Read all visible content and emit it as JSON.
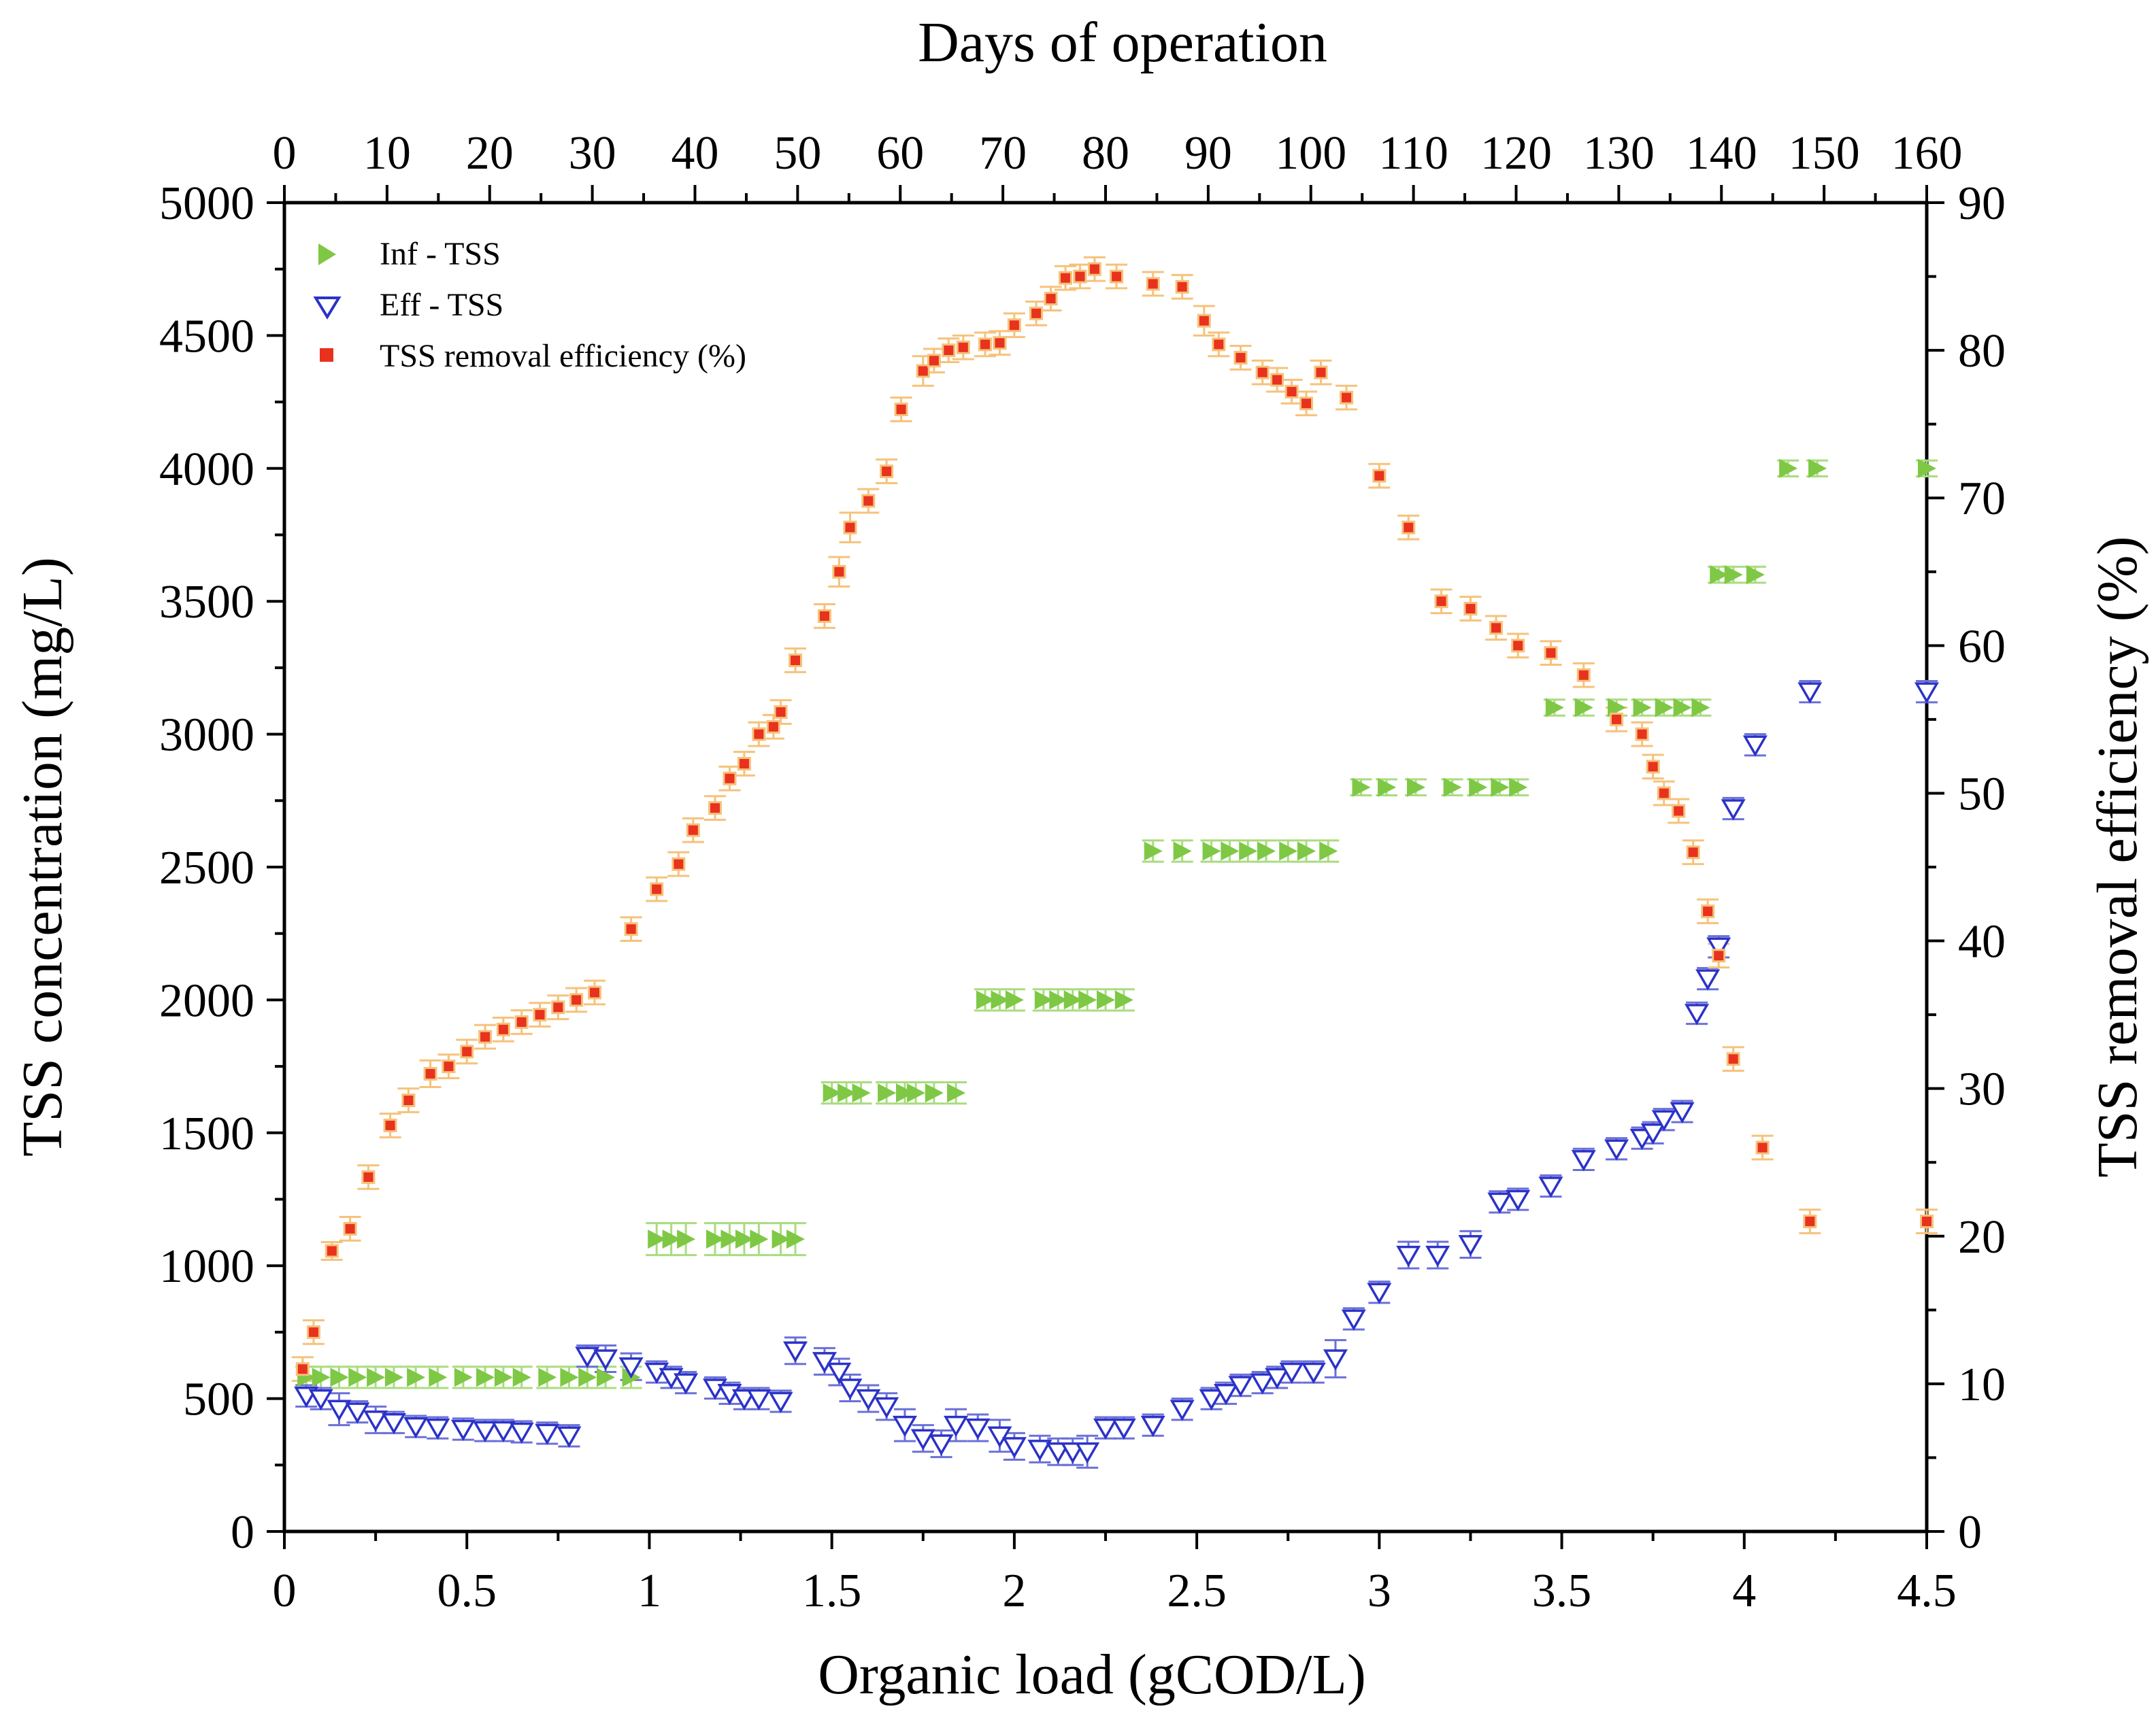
{
  "chart_data": {
    "type": "scatter",
    "x_bottom": {
      "label": "Organic load (gCOD/L)",
      "range": [
        0,
        4.5
      ],
      "ticks": [
        0,
        0.5,
        1,
        1.5,
        2,
        2.5,
        3,
        3.5,
        4,
        4.5
      ],
      "tick_labels": [
        "0",
        "0.5",
        "1",
        "1.5",
        "2",
        "2.5",
        "3",
        "3.5",
        "4",
        "4.5"
      ]
    },
    "x_top": {
      "label": "Days of operation",
      "range": [
        0,
        160
      ],
      "ticks": [
        0,
        10,
        20,
        30,
        40,
        50,
        60,
        70,
        80,
        90,
        100,
        110,
        120,
        130,
        140,
        150,
        160
      ],
      "tick_labels": [
        "0",
        "10",
        "20",
        "30",
        "40",
        "50",
        "60",
        "70",
        "80",
        "90",
        "100",
        "110",
        "120",
        "130",
        "140",
        "150",
        "160"
      ]
    },
    "y_left": {
      "label": "TSS concentration (mg/L)",
      "range": [
        0,
        5000
      ],
      "ticks": [
        0,
        500,
        1000,
        1500,
        2000,
        2500,
        3000,
        3500,
        4000,
        4500,
        5000
      ],
      "tick_labels": [
        "0",
        "500",
        "1000",
        "1500",
        "2000",
        "2500",
        "3000",
        "3500",
        "4000",
        "4500",
        "5000"
      ]
    },
    "y_right": {
      "label": "TSS removal efficiency (%)",
      "range": [
        0,
        90
      ],
      "ticks": [
        0,
        10,
        20,
        30,
        40,
        50,
        60,
        70,
        80,
        90
      ],
      "tick_labels": [
        "0",
        "10",
        "20",
        "30",
        "40",
        "50",
        "60",
        "70",
        "80",
        "90"
      ]
    },
    "legend_position": "top-left",
    "colors": {
      "inf": "#7ec845",
      "eff": "#2b32c8",
      "eff_err": "#6b70d8",
      "eff_inner": "#ffffff",
      "removal": "#e8321e",
      "removal_err": "#f6c27a",
      "inf_err": "#a9dc7e",
      "axis": "#000000"
    },
    "series": [
      {
        "name": "Inf - TSS",
        "marker": "triangle-right",
        "axis": "left",
        "x": [
          0.06,
          0.1,
          0.15,
          0.2,
          0.25,
          0.3,
          0.36,
          0.42,
          0.49,
          0.55,
          0.6,
          0.65,
          0.72,
          0.78,
          0.83,
          0.88,
          0.95,
          1.02,
          1.06,
          1.1,
          1.18,
          1.22,
          1.26,
          1.3,
          1.36,
          1.4,
          1.5,
          1.54,
          1.58,
          1.65,
          1.7,
          1.73,
          1.78,
          1.84,
          1.92,
          1.96,
          2.0,
          2.08,
          2.12,
          2.16,
          2.2,
          2.25,
          2.3,
          2.38,
          2.46,
          2.54,
          2.59,
          2.64,
          2.69,
          2.75,
          2.8,
          2.86,
          2.95,
          3.02,
          3.1,
          3.2,
          3.27,
          3.33,
          3.38,
          3.48,
          3.56,
          3.65,
          3.72,
          3.78,
          3.83,
          3.88,
          3.93,
          3.97,
          4.03,
          4.12,
          4.2,
          4.5
        ],
        "y": [
          580,
          580,
          580,
          580,
          580,
          580,
          580,
          580,
          580,
          580,
          580,
          580,
          580,
          580,
          580,
          580,
          580,
          1100,
          1100,
          1100,
          1100,
          1100,
          1100,
          1100,
          1100,
          1100,
          1650,
          1650,
          1650,
          1650,
          1650,
          1650,
          1650,
          1650,
          2000,
          2000,
          2000,
          2000,
          2000,
          2000,
          2000,
          2000,
          2000,
          2560,
          2560,
          2560,
          2560,
          2560,
          2560,
          2560,
          2560,
          2560,
          2800,
          2800,
          2800,
          2800,
          2800,
          2800,
          2800,
          3100,
          3100,
          3100,
          3100,
          3100,
          3100,
          3100,
          3600,
          3600,
          3600,
          4000,
          4000,
          4000
        ],
        "err": [
          40,
          40,
          40,
          40,
          40,
          40,
          40,
          40,
          40,
          40,
          40,
          40,
          40,
          40,
          40,
          40,
          40,
          60,
          60,
          60,
          60,
          60,
          60,
          60,
          60,
          60,
          40,
          40,
          40,
          40,
          40,
          40,
          40,
          40,
          40,
          40,
          40,
          40,
          40,
          40,
          40,
          40,
          40,
          40,
          40,
          40,
          40,
          40,
          40,
          40,
          40,
          40,
          30,
          30,
          30,
          30,
          30,
          30,
          30,
          30,
          30,
          30,
          30,
          30,
          30,
          30,
          30,
          30,
          30,
          30,
          30,
          30
        ]
      },
      {
        "name": "Eff - TSS",
        "marker": "triangle-down-open",
        "axis": "left",
        "x": [
          0.06,
          0.1,
          0.15,
          0.2,
          0.25,
          0.3,
          0.36,
          0.42,
          0.49,
          0.55,
          0.6,
          0.65,
          0.72,
          0.78,
          0.83,
          0.88,
          0.95,
          1.02,
          1.06,
          1.1,
          1.18,
          1.22,
          1.26,
          1.3,
          1.36,
          1.4,
          1.48,
          1.52,
          1.55,
          1.6,
          1.65,
          1.7,
          1.75,
          1.8,
          1.84,
          1.9,
          1.96,
          2.0,
          2.07,
          2.12,
          2.16,
          2.2,
          2.25,
          2.3,
          2.38,
          2.46,
          2.54,
          2.58,
          2.62,
          2.68,
          2.72,
          2.76,
          2.82,
          2.88,
          2.93,
          3.0,
          3.08,
          3.16,
          3.25,
          3.33,
          3.38,
          3.47,
          3.56,
          3.65,
          3.72,
          3.75,
          3.78,
          3.83,
          3.87,
          3.9,
          3.93,
          3.97,
          4.03,
          4.18,
          4.5
        ],
        "y": [
          510,
          500,
          460,
          450,
          420,
          410,
          395,
          390,
          385,
          380,
          380,
          375,
          370,
          360,
          660,
          650,
          620,
          600,
          580,
          560,
          540,
          520,
          500,
          500,
          490,
          680,
          640,
          600,
          540,
          500,
          470,
          400,
          350,
          330,
          400,
          390,
          360,
          320,
          310,
          300,
          300,
          300,
          390,
          390,
          400,
          460,
          500,
          520,
          550,
          560,
          580,
          600,
          600,
          650,
          800,
          900,
          1040,
          1040,
          1080,
          1240,
          1250,
          1300,
          1400,
          1440,
          1480,
          1500,
          1550,
          1580,
          1950,
          2080,
          2200,
          2720,
          2960,
          3160,
          3160
        ],
        "err": [
          40,
          40,
          60,
          40,
          50,
          40,
          40,
          40,
          40,
          40,
          40,
          40,
          40,
          40,
          40,
          50,
          50,
          40,
          40,
          40,
          40,
          40,
          40,
          40,
          40,
          50,
          50,
          50,
          50,
          50,
          50,
          60,
          50,
          50,
          60,
          50,
          60,
          50,
          50,
          50,
          50,
          60,
          40,
          40,
          40,
          40,
          40,
          40,
          40,
          40,
          40,
          40,
          40,
          70,
          40,
          40,
          50,
          50,
          50,
          40,
          40,
          40,
          40,
          40,
          40,
          40,
          40,
          40,
          40,
          40,
          40,
          40,
          40,
          40,
          40
        ]
      },
      {
        "name": "TSS removal efficiency (%)",
        "marker": "square",
        "axis": "right",
        "x": [
          0.05,
          0.08,
          0.13,
          0.18,
          0.23,
          0.29,
          0.34,
          0.4,
          0.45,
          0.5,
          0.55,
          0.6,
          0.65,
          0.7,
          0.75,
          0.8,
          0.85,
          0.95,
          1.02,
          1.08,
          1.12,
          1.18,
          1.22,
          1.26,
          1.3,
          1.34,
          1.36,
          1.4,
          1.48,
          1.52,
          1.55,
          1.6,
          1.65,
          1.69,
          1.75,
          1.78,
          1.82,
          1.86,
          1.92,
          1.96,
          2.0,
          2.06,
          2.1,
          2.14,
          2.18,
          2.22,
          2.28,
          2.38,
          2.46,
          2.52,
          2.56,
          2.62,
          2.68,
          2.72,
          2.76,
          2.8,
          2.84,
          2.91,
          3.0,
          3.08,
          3.17,
          3.25,
          3.32,
          3.38,
          3.47,
          3.56,
          3.65,
          3.72,
          3.75,
          3.78,
          3.82,
          3.86,
          3.9,
          3.93,
          3.97,
          4.05,
          4.18,
          4.5
        ],
        "y": [
          11,
          13.5,
          19,
          20.5,
          24,
          27.5,
          29.2,
          31,
          31.5,
          32.5,
          33.5,
          34,
          34.5,
          35,
          35.5,
          36,
          36.5,
          40.8,
          43.5,
          45.2,
          47.5,
          49,
          51,
          52,
          54,
          54.5,
          55.5,
          59,
          62,
          65,
          68,
          69.8,
          71.8,
          76,
          78.6,
          79.3,
          80,
          80.2,
          80.4,
          80.5,
          81.7,
          82.5,
          83.5,
          84.9,
          85,
          85.5,
          85,
          84.5,
          84.3,
          82,
          80.4,
          79.5,
          78.5,
          78,
          77.2,
          76.4,
          78.5,
          76.8,
          71.5,
          68,
          63,
          62.5,
          61.2,
          60,
          59.5,
          58,
          55,
          54,
          51.8,
          50,
          48.8,
          46,
          42,
          39,
          32,
          26,
          21,
          21
        ],
        "err": [
          0.8,
          0.8,
          0.6,
          0.8,
          0.8,
          0.8,
          0.8,
          0.9,
          0.8,
          0.8,
          0.8,
          0.8,
          0.8,
          0.8,
          0.8,
          0.8,
          0.8,
          0.8,
          0.8,
          0.8,
          0.8,
          0.8,
          0.8,
          0.8,
          0.8,
          0.8,
          0.8,
          0.8,
          0.8,
          1.0,
          1.0,
          0.8,
          0.8,
          0.8,
          1.0,
          0.8,
          0.8,
          0.8,
          0.8,
          0.8,
          0.8,
          0.8,
          0.8,
          0.8,
          0.8,
          0.8,
          0.8,
          0.8,
          0.8,
          1.0,
          0.8,
          0.8,
          0.8,
          0.8,
          0.8,
          0.8,
          0.8,
          0.8,
          0.8,
          0.8,
          0.8,
          0.8,
          0.8,
          0.8,
          0.8,
          0.8,
          0.8,
          0.8,
          0.8,
          0.8,
          0.8,
          0.8,
          0.8,
          0.8,
          0.8,
          0.8,
          0.8,
          0.8
        ]
      }
    ]
  }
}
